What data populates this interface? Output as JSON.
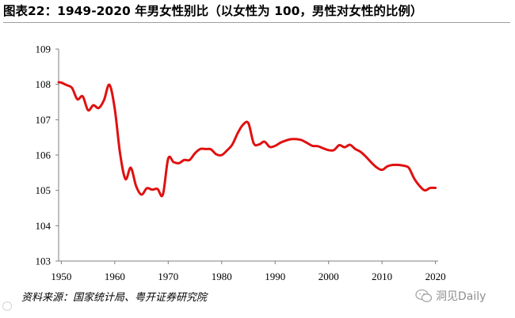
{
  "title": "图表22：1949-2020 年男女性别比（以女性为 100，男性对女性的比例）",
  "source": "资料来源：国家统计局、粤开证券研究院",
  "watermark": "洞见Daily",
  "chart_data": {
    "type": "line",
    "title": "",
    "xlabel": "",
    "ylabel": "",
    "xlim": [
      1949.5,
      2020.5
    ],
    "ylim": [
      103,
      109
    ],
    "xticks": [
      1950,
      1960,
      1970,
      1980,
      1990,
      2000,
      2010,
      2020
    ],
    "yticks": [
      103,
      104,
      105,
      106,
      107,
      108,
      109
    ],
    "grid": false,
    "legend": "none",
    "line_color": "#e01010",
    "series": [
      {
        "name": "",
        "x": [
          1949.5,
          1950,
          1951,
          1952,
          1953,
          1954,
          1955,
          1956,
          1957,
          1958,
          1959,
          1960,
          1961,
          1962,
          1963,
          1964,
          1965,
          1966,
          1967,
          1968,
          1969,
          1970,
          1971,
          1972,
          1973,
          1974,
          1975,
          1976,
          1977,
          1978,
          1979,
          1980,
          1981,
          1982,
          1983,
          1984,
          1985,
          1986,
          1987,
          1988,
          1989,
          1990,
          1991,
          1992,
          1993,
          1994,
          1995,
          1996,
          1997,
          1998,
          1999,
          2000,
          2001,
          2002,
          2003,
          2004,
          2005,
          2006,
          2007,
          2008,
          2009,
          2010,
          2011,
          2012,
          2013,
          2014,
          2015,
          2016,
          2017,
          2018,
          2019,
          2020
        ],
        "values": [
          108.06,
          108.05,
          107.98,
          107.9,
          107.58,
          107.66,
          107.27,
          107.41,
          107.33,
          107.56,
          107.99,
          107.31,
          106.04,
          105.32,
          105.64,
          105.12,
          104.88,
          105.06,
          105.02,
          105.04,
          104.88,
          105.9,
          105.8,
          105.77,
          105.86,
          105.86,
          106.05,
          106.17,
          106.17,
          106.16,
          106.02,
          106.0,
          106.13,
          106.3,
          106.62,
          106.86,
          106.9,
          106.33,
          106.3,
          106.38,
          106.23,
          106.26,
          106.35,
          106.41,
          106.45,
          106.45,
          106.42,
          106.34,
          106.26,
          106.25,
          106.19,
          106.14,
          106.14,
          106.28,
          106.22,
          106.29,
          106.17,
          106.09,
          105.95,
          105.79,
          105.65,
          105.58,
          105.68,
          105.72,
          105.72,
          105.7,
          105.64,
          105.34,
          105.13,
          105.0,
          105.07,
          105.07
        ]
      }
    ]
  }
}
